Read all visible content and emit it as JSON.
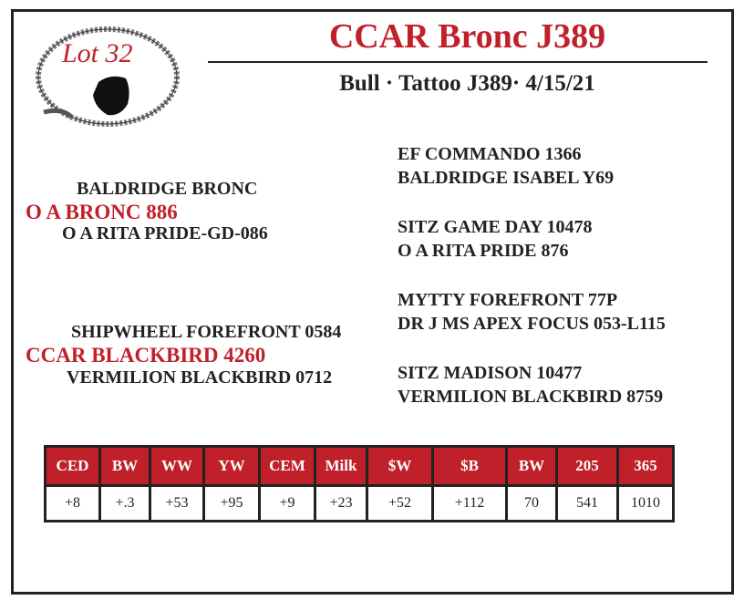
{
  "lot": "Lot 32",
  "title": "CCAR Bronc J389",
  "subtitle": "Bull · Tattoo J389· 4/15/21",
  "pedigree": {
    "sire_sire": "BALDRIDGE BRONC",
    "sire": "O A BRONC 886",
    "sire_dam": "O A RITA PRIDE-GD-086",
    "dam_sire": "SHIPWHEEL FOREFRONT 0584",
    "dam": "CCAR BLACKBIRD 4260",
    "dam_dam": "VERMILION BLACKBIRD 0712",
    "right": [
      "EF COMMANDO 1366",
      "BALDRIDGE ISABEL Y69",
      "SITZ GAME DAY 10478",
      "O A RITA PRIDE 876",
      "MYTTY FOREFRONT 77P",
      "DR J MS APEX FOCUS 053-L115",
      "SITZ MADISON 10477",
      "VERMILION BLACKBIRD 8759"
    ]
  },
  "table": {
    "headers": [
      "CED",
      "BW",
      "WW",
      "YW",
      "CEM",
      "Milk",
      "$W",
      "$B",
      "BW",
      "205",
      "365"
    ],
    "values": [
      "+8",
      "+.3",
      "+53",
      "+95",
      "+9",
      "+23",
      "+52",
      "+112",
      "70",
      "541",
      "1010"
    ]
  },
  "colors": {
    "accent": "#c0202a"
  }
}
